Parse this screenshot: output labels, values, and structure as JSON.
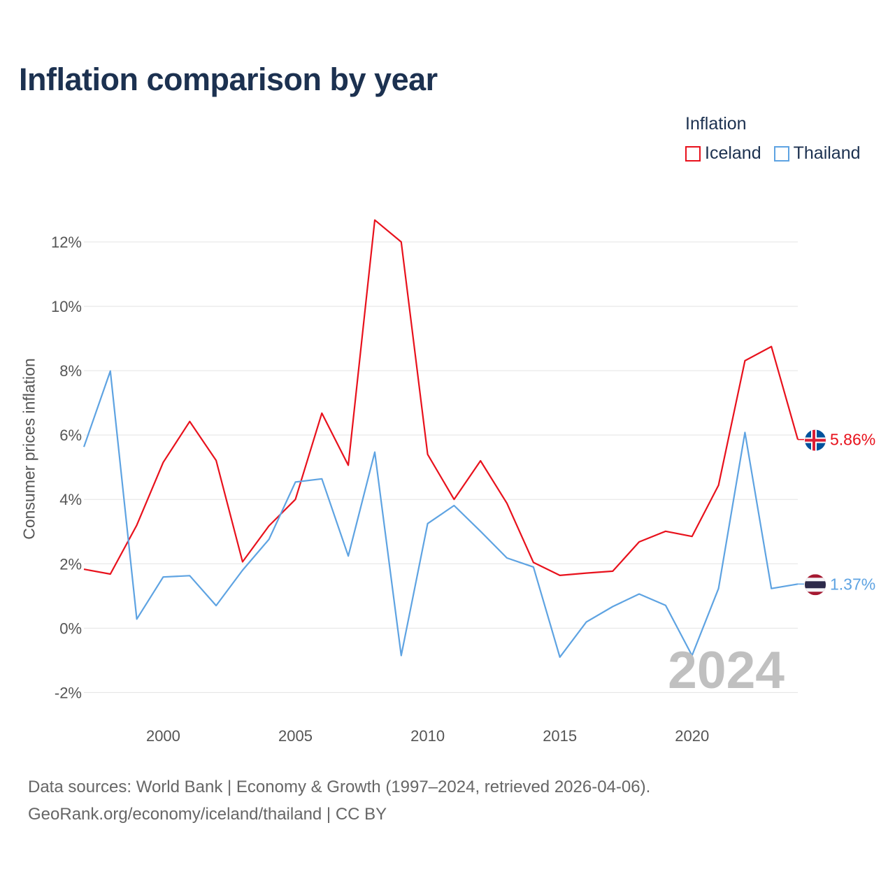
{
  "title": "Inflation comparison by year",
  "legend": {
    "title": "Inflation",
    "items": [
      {
        "label": "Iceland",
        "color": "#e8111c"
      },
      {
        "label": "Thailand",
        "color": "#5ea3e2"
      }
    ]
  },
  "year_badge": "2024",
  "footer": {
    "line1": "Data sources: World Bank | Economy & Growth (1997–2024, retrieved 2026-04-06).",
    "line2": "GeoRank.org/economy/iceland/thailand | CC BY"
  },
  "chart_data": {
    "type": "line",
    "title": "Inflation comparison by year",
    "xlabel": "",
    "ylabel": "Consumer prices inflation",
    "x": [
      1997,
      1998,
      1999,
      2000,
      2001,
      2002,
      2003,
      2004,
      2005,
      2006,
      2007,
      2008,
      2009,
      2010,
      2011,
      2012,
      2013,
      2014,
      2015,
      2016,
      2017,
      2018,
      2019,
      2020,
      2021,
      2022,
      2023,
      2024
    ],
    "xlim": [
      1997,
      2024
    ],
    "ylim": [
      -2.6,
      13
    ],
    "x_ticks": [
      2000,
      2005,
      2010,
      2015,
      2020
    ],
    "y_ticks": [
      -2,
      0,
      2,
      4,
      6,
      8,
      10,
      12
    ],
    "y_tick_labels": [
      "-2%",
      "0%",
      "2%",
      "4%",
      "6%",
      "8%",
      "10%",
      "12%"
    ],
    "grid": "horizontal",
    "legend_position": "top-right",
    "series": [
      {
        "name": "Iceland",
        "color": "#e8111c",
        "flag": "iceland-flag",
        "end_label": "5.86%",
        "values": [
          1.83,
          1.68,
          3.2,
          5.15,
          6.42,
          5.21,
          2.06,
          3.18,
          4.0,
          6.68,
          5.06,
          12.68,
          12.0,
          5.4,
          4.0,
          5.2,
          3.88,
          2.04,
          1.64,
          1.71,
          1.77,
          2.68,
          3.01,
          2.85,
          4.44,
          8.31,
          8.75,
          5.86
        ]
      },
      {
        "name": "Thailand",
        "color": "#5ea3e2",
        "flag": "thailand-flag",
        "end_label": "1.37%",
        "values": [
          5.63,
          7.99,
          0.28,
          1.59,
          1.63,
          0.7,
          1.8,
          2.76,
          4.54,
          4.64,
          2.24,
          5.47,
          -0.85,
          3.25,
          3.81,
          3.01,
          2.18,
          1.9,
          -0.9,
          0.19,
          0.67,
          1.06,
          0.71,
          -0.85,
          1.23,
          6.08,
          1.23,
          1.37
        ]
      }
    ],
    "annotations": [
      "2024"
    ]
  }
}
